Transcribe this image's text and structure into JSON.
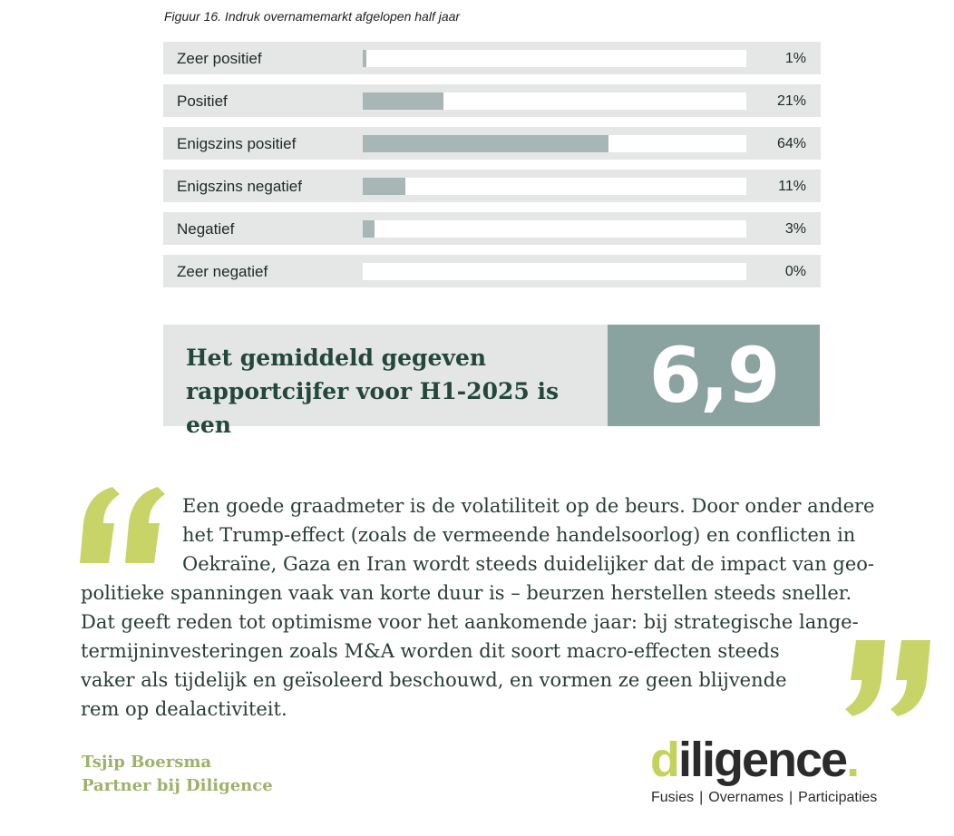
{
  "figure": {
    "title": "Figuur 16. Indruk overnamemarkt afgelopen half jaar"
  },
  "chart_data": {
    "type": "bar",
    "orientation": "horizontal",
    "categories": [
      "Zeer positief",
      "Positief",
      "Enigszins positief",
      "Enigszins negatief",
      "Negatief",
      "Zeer negatief"
    ],
    "values": [
      1,
      21,
      64,
      11,
      3,
      0
    ],
    "value_labels": [
      "1%",
      "21%",
      "64%",
      "11%",
      "3%",
      "0%"
    ],
    "title": "Figuur 16. Indruk overnamemarkt afgelopen half jaar",
    "xlim": [
      0,
      100
    ],
    "colors": {
      "fill": "#a9b6b6",
      "track": "#ffffff",
      "row": "#e4e7e5"
    }
  },
  "score": {
    "text_line1": "Het gemiddeld gegeven",
    "text_line2": "rapportcijfer voor H1-2025 is een",
    "value": "6,9"
  },
  "quote": {
    "lines": [
      "Een goede graadmeter is de volatiliteit op de beurs. Door onder andere",
      "het Trump-effect (zoals de vermeende handelsoorlog) en conflicten in",
      "Oekraïne, Gaza en Iran wordt steeds duidelijker dat de impact van geo-",
      "politieke spanningen vaak van korte duur is – beurzen herstellen steeds sneller.",
      "Dat geeft reden tot optimisme voor het aankomende jaar: bij strategische lange-",
      "termijninvesteringen zoals M&A worden dit soort macro-effecten steeds",
      "vaker als tijdelijk en geïsoleerd beschouwd, en vormen ze geen blijvende",
      "rem op dealactiviteit."
    ],
    "author_name": "Tsjip Boersma",
    "author_title": "Partner bij Diligence"
  },
  "logo": {
    "brand_first": "d",
    "brand_rest": "iligence",
    "brand_dot": ".",
    "tagline_1": "Fusies",
    "tagline_2": "Overnames",
    "tagline_3": "Participaties",
    "separator": "|",
    "accent_color": "#c4d15a"
  },
  "colors": {
    "quote_mark": "#c8d468",
    "heading_green": "#23473a",
    "score_box": "#8aa2a0",
    "author_green": "#9cb26a"
  }
}
